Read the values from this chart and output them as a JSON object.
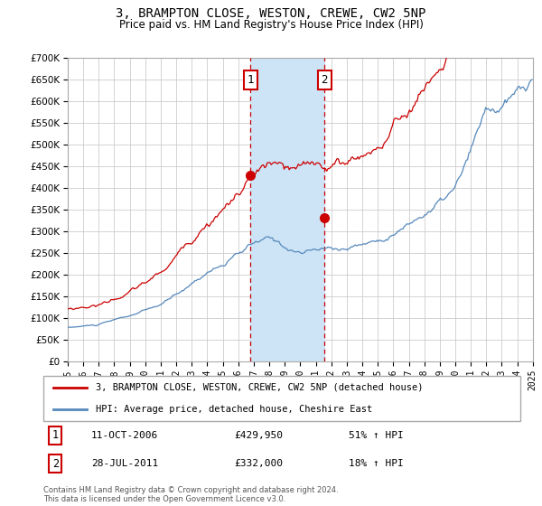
{
  "title": "3, BRAMPTON CLOSE, WESTON, CREWE, CW2 5NP",
  "subtitle": "Price paid vs. HM Land Registry's House Price Index (HPI)",
  "background_color": "#ffffff",
  "grid_color": "#cccccc",
  "sale1_date": "11-OCT-2006",
  "sale1_price": 429950,
  "sale1_pct": "51%",
  "sale2_date": "28-JUL-2011",
  "sale2_price": 332000,
  "sale2_pct": "18%",
  "legend_label_red": "3, BRAMPTON CLOSE, WESTON, CREWE, CW2 5NP (detached house)",
  "legend_label_blue": "HPI: Average price, detached house, Cheshire East",
  "footer": "Contains HM Land Registry data © Crown copyright and database right 2024.\nThis data is licensed under the Open Government Licence v3.0.",
  "red_color": "#cc0000",
  "blue_color": "#5588bb",
  "shade_color": "#cce4f5",
  "sale1_year": 2006.78,
  "sale2_year": 2011.57,
  "sale1_value": 429950,
  "sale2_value": 332000,
  "ylim_min": 0,
  "ylim_max": 700000,
  "xlim_min": 1995,
  "xlim_max": 2025,
  "ytick_step": 50000,
  "title_fontsize": 10,
  "subtitle_fontsize": 8.5
}
